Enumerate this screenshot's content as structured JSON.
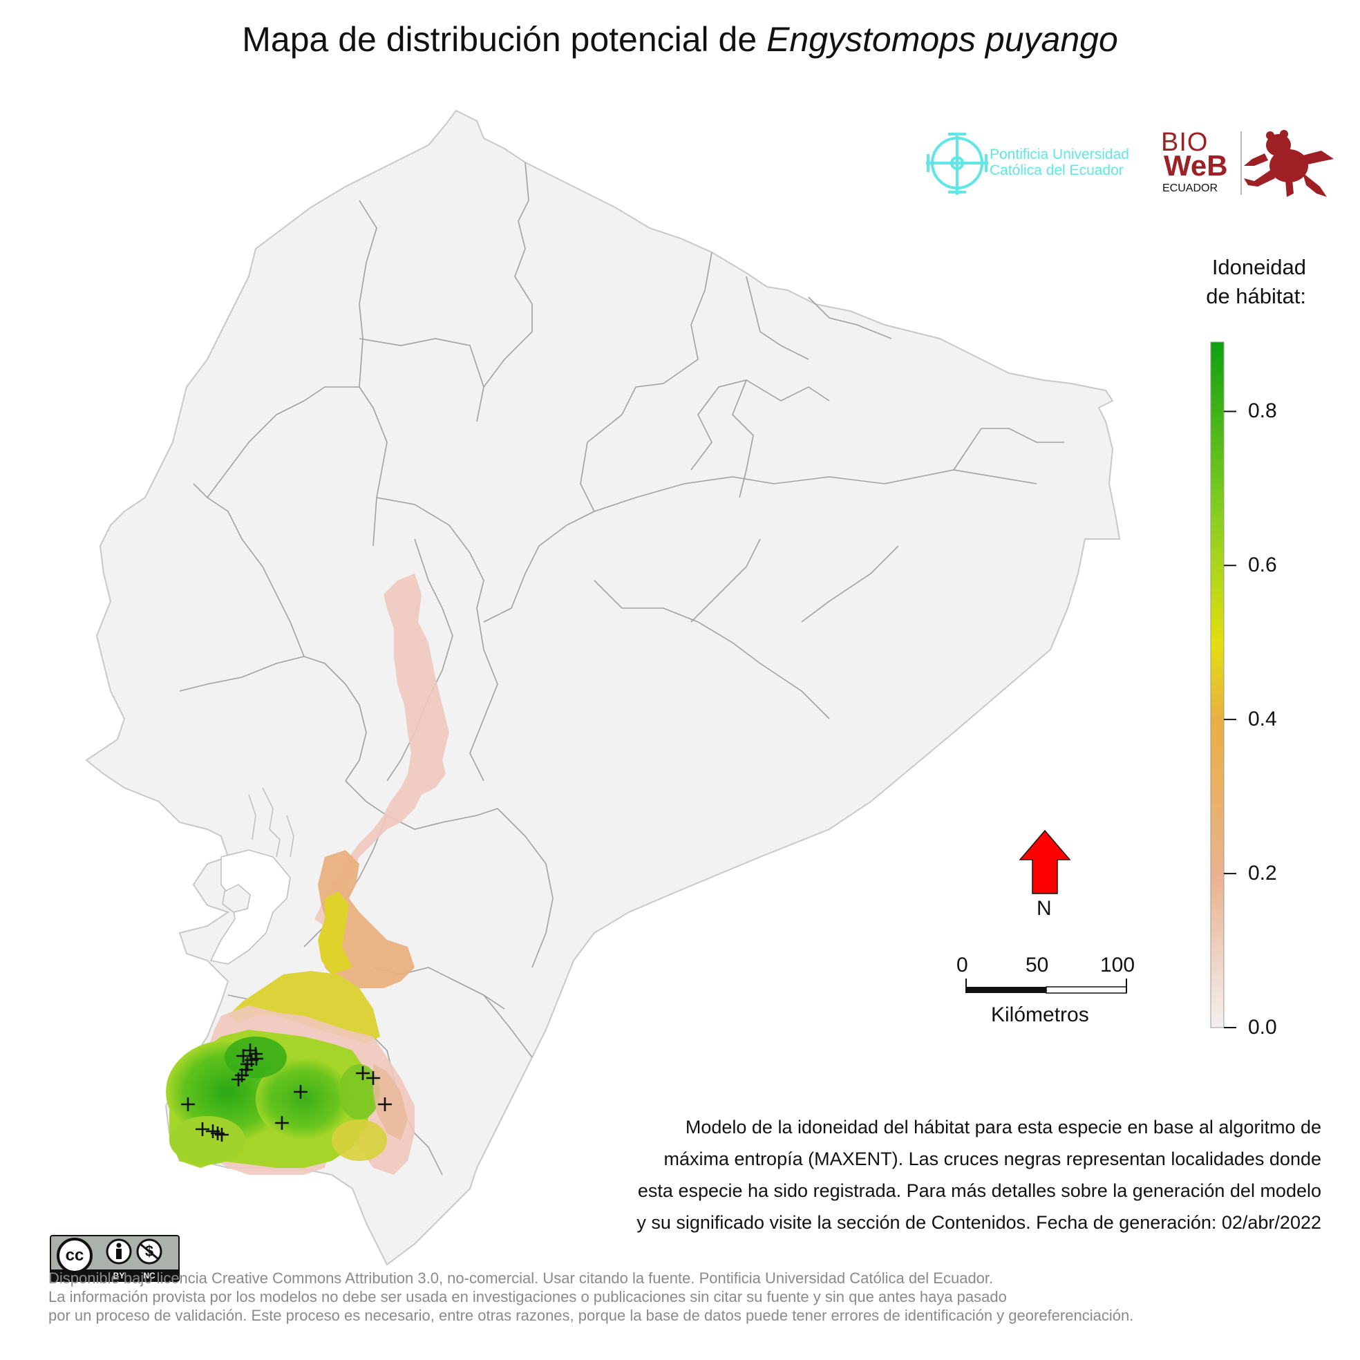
{
  "title": {
    "prefix": "Mapa de distribución potencial de ",
    "species": "Engystomops puyango"
  },
  "logos": {
    "puce_line1": "Pontificia Universidad",
    "puce_line2": "Católica del Ecuador",
    "bioweb_line1": "BIO",
    "bioweb_line2": "WeB",
    "bioweb_line3": "ECUADOR"
  },
  "legend": {
    "title_line1": "Idoneidad",
    "title_line2": "de hábitat:",
    "ticks": [
      "0.8",
      "0.6",
      "0.4",
      "0.2",
      "0.0"
    ],
    "tick_values": [
      0.8,
      0.6,
      0.4,
      0.2,
      0.0
    ],
    "range": [
      0.0,
      0.89
    ],
    "colors": [
      "#f3f0ef",
      "#e9b290",
      "#e8b040",
      "#e3de10",
      "#86cf20",
      "#10a010"
    ]
  },
  "north_arrow": {
    "label": "N",
    "color": "#ff0000"
  },
  "scale_bar": {
    "ticks": [
      "0",
      "50",
      "100"
    ],
    "unit": "Kilómetros"
  },
  "description": {
    "line1": "Modelo de la idoneidad del hábitat para esta especie en base al algoritmo de",
    "line2": "máxima entropía (MAXENT). Las cruces negras representan localidades donde",
    "line3": "esta especie ha sido registrada. Para más detalles sobre la generación del modelo",
    "line4": "y su significado visite la sección de Contenidos. Fecha de generación: 02/abr/2022"
  },
  "license": {
    "cc_text": "cc",
    "by": "BY",
    "nc": "NC",
    "line1": "Disponible bajo licencia Creative Commons Attribution 3.0, no-comercial. Usar citando la fuente. Pontificia Universidad Católica del Ecuador.",
    "line2": "La información provista por los modelos no debe ser usada en investigaciones o publicaciones sin citar su fuente y sin que antes haya pasado",
    "line3": "por un proceso de validación. Este proceso es necesario, entre otras razones, porque la base de datos puede tener errores de identificación y georeferenciación."
  },
  "map": {
    "background_color": "#f2f2f2",
    "border_color": "#9a9a9a",
    "record_count": 19
  }
}
